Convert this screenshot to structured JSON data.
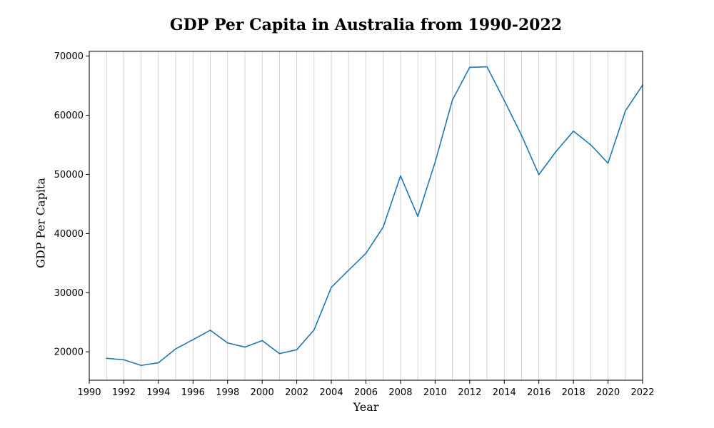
{
  "chart_data": {
    "type": "line",
    "title": "GDP Per Capita in Australia from 1990-2022",
    "xlabel": "Year",
    "ylabel": "GDP Per Capita",
    "xlim": [
      1990,
      2022
    ],
    "ylim": [
      15200,
      70800
    ],
    "x_ticks": [
      1990,
      1992,
      1994,
      1996,
      1998,
      2000,
      2002,
      2004,
      2006,
      2008,
      2010,
      2012,
      2014,
      2016,
      2018,
      2020,
      2022
    ],
    "y_ticks": [
      20000,
      30000,
      40000,
      50000,
      60000,
      70000
    ],
    "grid": "vertical-yearly",
    "series_color": "#1f77b4",
    "grid_color": "#c8c8c8",
    "series": [
      {
        "x": [
          1991,
          1992,
          1993,
          1994,
          1995,
          1996,
          1997,
          1998,
          1999,
          2000,
          2001,
          2002,
          2003,
          2004,
          2005,
          2006,
          2007,
          2008,
          2009,
          2010,
          2011,
          2012,
          2013,
          2014,
          2015,
          2016,
          2017,
          2018,
          2019,
          2020,
          2021,
          2022
        ],
        "values": [
          18900,
          18650,
          17700,
          18150,
          20500,
          22050,
          23650,
          21500,
          20800,
          21900,
          19700,
          20350,
          23700,
          30900,
          33800,
          36650,
          41100,
          49750,
          42900,
          52050,
          62550,
          68100,
          68200,
          62500,
          56600,
          49950,
          53900,
          57300,
          55000,
          51900,
          60700,
          65100
        ]
      }
    ]
  }
}
